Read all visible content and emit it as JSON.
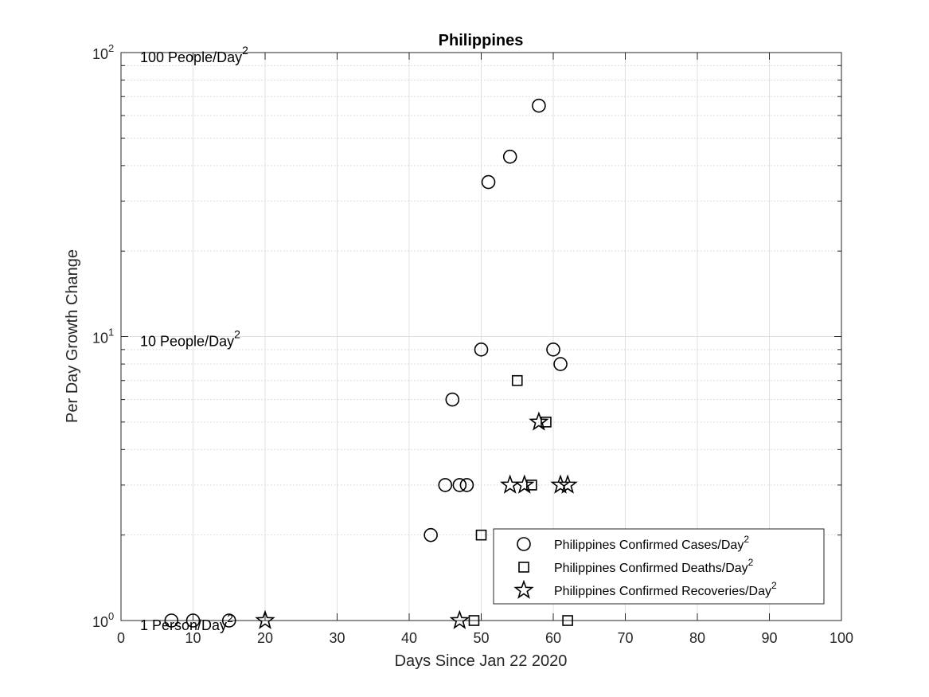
{
  "chart_data": {
    "type": "scatter",
    "title": "Philippines",
    "xlabel": "Days Since Jan 22 2020",
    "ylabel": "Per Day Growth Change",
    "xlim": [
      0,
      100
    ],
    "ylim": [
      1,
      100
    ],
    "yscale": "log",
    "grid": true,
    "x_ticks": [
      "0",
      "10",
      "20",
      "30",
      "40",
      "50",
      "60",
      "70",
      "80",
      "90",
      "100"
    ],
    "y_ticks": [
      {
        "base": "10",
        "exp": "0"
      },
      {
        "base": "10",
        "exp": "1"
      },
      {
        "base": "10",
        "exp": "2"
      }
    ],
    "annotations": [
      {
        "text": "1 Person/Day",
        "sup": "2"
      },
      {
        "text": "10 People/Day",
        "sup": "2"
      },
      {
        "text": "100 People/Day",
        "sup": "2"
      }
    ],
    "legend_position": "bottom-right",
    "series": [
      {
        "name": "Philippines Confirmed Cases/Day",
        "name_sup": "2",
        "marker": "circle",
        "points": [
          [
            7,
            1
          ],
          [
            10,
            1
          ],
          [
            15,
            1
          ],
          [
            43,
            2
          ],
          [
            45,
            3
          ],
          [
            46,
            6
          ],
          [
            47,
            3
          ],
          [
            48,
            3
          ],
          [
            50,
            9
          ],
          [
            51,
            35
          ],
          [
            54,
            43
          ],
          [
            58,
            65
          ],
          [
            60,
            9
          ],
          [
            61,
            8
          ]
        ]
      },
      {
        "name": "Philippines Confirmed Deaths/Day",
        "name_sup": "2",
        "marker": "square",
        "points": [
          [
            49,
            1
          ],
          [
            50,
            2
          ],
          [
            55,
            7
          ],
          [
            57,
            3
          ],
          [
            59,
            5
          ],
          [
            62,
            1
          ]
        ]
      },
      {
        "name": "Philippines Confirmed Recoveries/Day",
        "name_sup": "2",
        "marker": "star",
        "points": [
          [
            20,
            1
          ],
          [
            47,
            1
          ],
          [
            54,
            3
          ],
          [
            56,
            3
          ],
          [
            58,
            5
          ],
          [
            61,
            3
          ],
          [
            62,
            3
          ]
        ]
      }
    ]
  }
}
